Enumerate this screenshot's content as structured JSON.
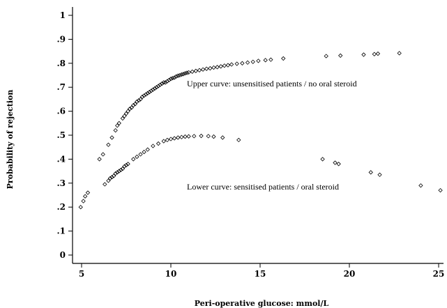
{
  "chart_data": {
    "type": "scatter",
    "title": "",
    "xlabel": "Peri-operative glucose: mmol/L",
    "ylabel": "Probability of rejection",
    "xlim": [
      4.8,
      25.2
    ],
    "ylim": [
      -0.03,
      1.03
    ],
    "x_ticks": [
      5,
      10,
      15,
      20,
      25
    ],
    "x_tick_labels": [
      "5",
      "10",
      "15",
      "20",
      "25"
    ],
    "y_ticks": [
      0,
      0.1,
      0.2,
      0.3,
      0.4,
      0.5,
      0.6,
      0.7,
      0.8,
      0.9,
      1
    ],
    "y_tick_labels": [
      "0",
      ".1",
      ".2",
      ".3",
      ".4",
      ".5",
      ".6",
      ".7",
      ".8",
      ".9",
      "1"
    ],
    "grid": false,
    "marker": "hollow-diamond",
    "annotations": [
      {
        "text": "Upper curve: unsensitised patients / no oral steroid",
        "x": 10.9,
        "y": 0.715
      },
      {
        "text": "Lower curve: sensitised patients / oral steroid",
        "x": 10.9,
        "y": 0.285
      }
    ],
    "series": [
      {
        "points": [
          [
            6.0,
            0.4
          ],
          [
            6.2,
            0.42
          ],
          [
            6.5,
            0.46
          ],
          [
            6.7,
            0.49
          ],
          [
            6.9,
            0.52
          ],
          [
            7.0,
            0.54
          ],
          [
            7.1,
            0.55
          ],
          [
            7.3,
            0.57
          ],
          [
            7.4,
            0.58
          ],
          [
            7.5,
            0.59
          ],
          [
            7.6,
            0.6
          ],
          [
            7.7,
            0.61
          ],
          [
            7.8,
            0.615
          ],
          [
            7.9,
            0.625
          ],
          [
            8.0,
            0.63
          ],
          [
            8.1,
            0.64
          ],
          [
            8.2,
            0.645
          ],
          [
            8.3,
            0.65
          ],
          [
            8.4,
            0.66
          ],
          [
            8.5,
            0.665
          ],
          [
            8.6,
            0.67
          ],
          [
            8.7,
            0.675
          ],
          [
            8.8,
            0.68
          ],
          [
            8.9,
            0.685
          ],
          [
            9.0,
            0.69
          ],
          [
            9.1,
            0.695
          ],
          [
            9.2,
            0.7
          ],
          [
            9.3,
            0.705
          ],
          [
            9.4,
            0.71
          ],
          [
            9.5,
            0.715
          ],
          [
            9.6,
            0.72
          ],
          [
            9.7,
            0.72
          ],
          [
            9.8,
            0.725
          ],
          [
            9.9,
            0.73
          ],
          [
            10.0,
            0.735
          ],
          [
            10.1,
            0.738
          ],
          [
            10.2,
            0.74
          ],
          [
            10.3,
            0.745
          ],
          [
            10.4,
            0.748
          ],
          [
            10.5,
            0.75
          ],
          [
            10.6,
            0.753
          ],
          [
            10.7,
            0.755
          ],
          [
            10.8,
            0.758
          ],
          [
            10.9,
            0.76
          ],
          [
            11.0,
            0.762
          ],
          [
            11.2,
            0.765
          ],
          [
            11.4,
            0.768
          ],
          [
            11.6,
            0.771
          ],
          [
            11.8,
            0.774
          ],
          [
            12.0,
            0.777
          ],
          [
            12.2,
            0.779
          ],
          [
            12.4,
            0.782
          ],
          [
            12.6,
            0.784
          ],
          [
            12.8,
            0.787
          ],
          [
            13.0,
            0.79
          ],
          [
            13.2,
            0.792
          ],
          [
            13.4,
            0.795
          ],
          [
            13.7,
            0.798
          ],
          [
            14.0,
            0.8
          ],
          [
            14.3,
            0.803
          ],
          [
            14.6,
            0.806
          ],
          [
            14.9,
            0.81
          ],
          [
            15.3,
            0.813
          ],
          [
            15.6,
            0.815
          ],
          [
            16.3,
            0.82
          ],
          [
            18.7,
            0.83
          ],
          [
            19.5,
            0.832
          ],
          [
            20.8,
            0.836
          ],
          [
            21.4,
            0.838
          ],
          [
            21.6,
            0.84
          ],
          [
            22.8,
            0.842
          ]
        ]
      },
      {
        "points": [
          [
            4.95,
            0.2
          ],
          [
            5.1,
            0.225
          ],
          [
            5.2,
            0.245
          ],
          [
            5.35,
            0.26
          ],
          [
            6.3,
            0.295
          ],
          [
            6.5,
            0.31
          ],
          [
            6.6,
            0.32
          ],
          [
            6.7,
            0.325
          ],
          [
            6.8,
            0.33
          ],
          [
            6.9,
            0.34
          ],
          [
            7.0,
            0.345
          ],
          [
            7.1,
            0.35
          ],
          [
            7.2,
            0.355
          ],
          [
            7.3,
            0.36
          ],
          [
            7.4,
            0.37
          ],
          [
            7.5,
            0.375
          ],
          [
            7.6,
            0.38
          ],
          [
            7.9,
            0.4
          ],
          [
            8.1,
            0.41
          ],
          [
            8.3,
            0.42
          ],
          [
            8.5,
            0.43
          ],
          [
            8.7,
            0.44
          ],
          [
            9.0,
            0.455
          ],
          [
            9.3,
            0.465
          ],
          [
            9.6,
            0.475
          ],
          [
            9.8,
            0.48
          ],
          [
            10.0,
            0.484
          ],
          [
            10.2,
            0.487
          ],
          [
            10.4,
            0.49
          ],
          [
            10.6,
            0.492
          ],
          [
            10.8,
            0.494
          ],
          [
            11.0,
            0.495
          ],
          [
            11.3,
            0.496
          ],
          [
            11.7,
            0.497
          ],
          [
            12.1,
            0.496
          ],
          [
            12.4,
            0.494
          ],
          [
            12.9,
            0.49
          ],
          [
            13.8,
            0.48
          ],
          [
            18.5,
            0.4
          ],
          [
            19.2,
            0.385
          ],
          [
            19.4,
            0.38
          ],
          [
            21.2,
            0.345
          ],
          [
            21.7,
            0.335
          ],
          [
            24.0,
            0.29
          ],
          [
            25.1,
            0.27
          ]
        ]
      }
    ]
  }
}
